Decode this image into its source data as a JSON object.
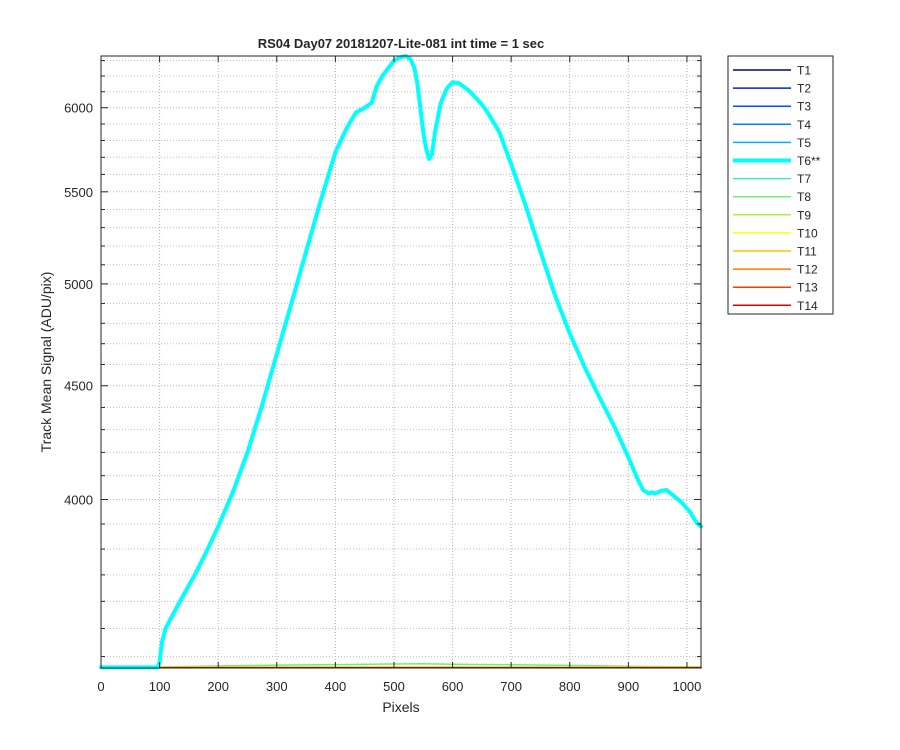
{
  "chart_data": {
    "type": "line",
    "title": "RS04 Day07 20181207-Lite-081 int time = 1 sec",
    "xlabel": "Pixels",
    "ylabel": "Track Mean Signal (ADU/pix)",
    "xlim": [
      0,
      1024
    ],
    "ylim": [
      3360,
      6330
    ],
    "y_scale": "log",
    "grid": true,
    "minor_grid": true,
    "legend_position": "outside-top-right",
    "x_ticks": [
      "0",
      "100",
      "200",
      "300",
      "400",
      "500",
      "600",
      "700",
      "800",
      "900",
      "1000"
    ],
    "x_tick_values": [
      0,
      100,
      200,
      300,
      400,
      500,
      600,
      700,
      800,
      900,
      1000
    ],
    "y_ticks": [
      "4000",
      "4500",
      "5000",
      "5500",
      "6000"
    ],
    "y_tick_values": [
      4000,
      4500,
      5000,
      5500,
      6000
    ],
    "y_minor_ticks": [
      3400,
      3500,
      3600,
      3700,
      3800,
      3900,
      4100,
      4200,
      4300,
      4400,
      4600,
      4700,
      4800,
      4900,
      5100,
      5200,
      5300,
      5400,
      5600,
      5700,
      5800,
      5900,
      6100,
      6200,
      6300
    ],
    "series": [
      {
        "name": "T1",
        "color": "#00008f",
        "x": [
          0,
          1024
        ],
        "values": [
          3362,
          3362
        ]
      },
      {
        "name": "T2",
        "color": "#0022cc",
        "x": [
          0,
          1024
        ],
        "values": [
          3362,
          3362
        ]
      },
      {
        "name": "T3",
        "color": "#0050ff",
        "x": [
          0,
          1024
        ],
        "values": [
          3362,
          3362
        ]
      },
      {
        "name": "T4",
        "color": "#0080ff",
        "x": [
          0,
          1024
        ],
        "values": [
          3362,
          3362
        ]
      },
      {
        "name": "T5",
        "color": "#00b0ff",
        "x": [
          0,
          1024
        ],
        "values": [
          3362,
          3362
        ]
      },
      {
        "name": "T6**",
        "color": "#00ffff",
        "highlight": true,
        "x": [
          0,
          97,
          100,
          104,
          110,
          125,
          140,
          160,
          180,
          200,
          225,
          250,
          275,
          300,
          325,
          350,
          375,
          400,
          420,
          435,
          450,
          462,
          470,
          480,
          490,
          500,
          510,
          520,
          528,
          535,
          540,
          545,
          550,
          555,
          560,
          565,
          570,
          580,
          590,
          600,
          610,
          620,
          630,
          640,
          650,
          660,
          680,
          700,
          725,
          750,
          775,
          800,
          825,
          850,
          875,
          900,
          915,
          925,
          935,
          940,
          945,
          955,
          965,
          975,
          990,
          1005,
          1015,
          1024
        ],
        "values": [
          3362,
          3362,
          3380,
          3450,
          3500,
          3560,
          3620,
          3700,
          3790,
          3890,
          4030,
          4200,
          4410,
          4650,
          4900,
          5170,
          5450,
          5730,
          5880,
          5970,
          6000,
          6030,
          6130,
          6200,
          6250,
          6300,
          6320,
          6330,
          6310,
          6250,
          6150,
          6000,
          5850,
          5750,
          5690,
          5720,
          5850,
          6030,
          6120,
          6160,
          6155,
          6130,
          6100,
          6060,
          6020,
          5970,
          5850,
          5660,
          5420,
          5170,
          4940,
          4750,
          4590,
          4450,
          4320,
          4180,
          4090,
          4040,
          4025,
          4030,
          4025,
          4035,
          4040,
          4020,
          3990,
          3950,
          3910,
          3890
        ]
      },
      {
        "name": "T7",
        "color": "#40e8c0",
        "x": [
          0,
          1024
        ],
        "values": [
          3363,
          3363
        ]
      },
      {
        "name": "T8",
        "color": "#70f070",
        "x": [
          0,
          100,
          200,
          300,
          400,
          500,
          550,
          600,
          700,
          800,
          900,
          1024
        ],
        "values": [
          3364,
          3364,
          3367,
          3370,
          3372,
          3374,
          3375,
          3373,
          3371,
          3369,
          3366,
          3364
        ]
      },
      {
        "name": "T9",
        "color": "#b0f040",
        "x": [
          0,
          1024
        ],
        "values": [
          3363,
          3363
        ]
      },
      {
        "name": "T10",
        "color": "#ffff00",
        "x": [
          0,
          1024
        ],
        "values": [
          3362,
          3362
        ]
      },
      {
        "name": "T11",
        "color": "#ffc000",
        "x": [
          0,
          1024
        ],
        "values": [
          3362,
          3362
        ]
      },
      {
        "name": "T12",
        "color": "#ff7a00",
        "x": [
          0,
          1024
        ],
        "values": [
          3361,
          3361
        ]
      },
      {
        "name": "T13",
        "color": "#ff3a00",
        "x": [
          0,
          1024
        ],
        "values": [
          3361,
          3361
        ]
      },
      {
        "name": "T14",
        "color": "#e00000",
        "x": [
          0,
          1024
        ],
        "values": [
          3361,
          3361
        ]
      }
    ]
  }
}
